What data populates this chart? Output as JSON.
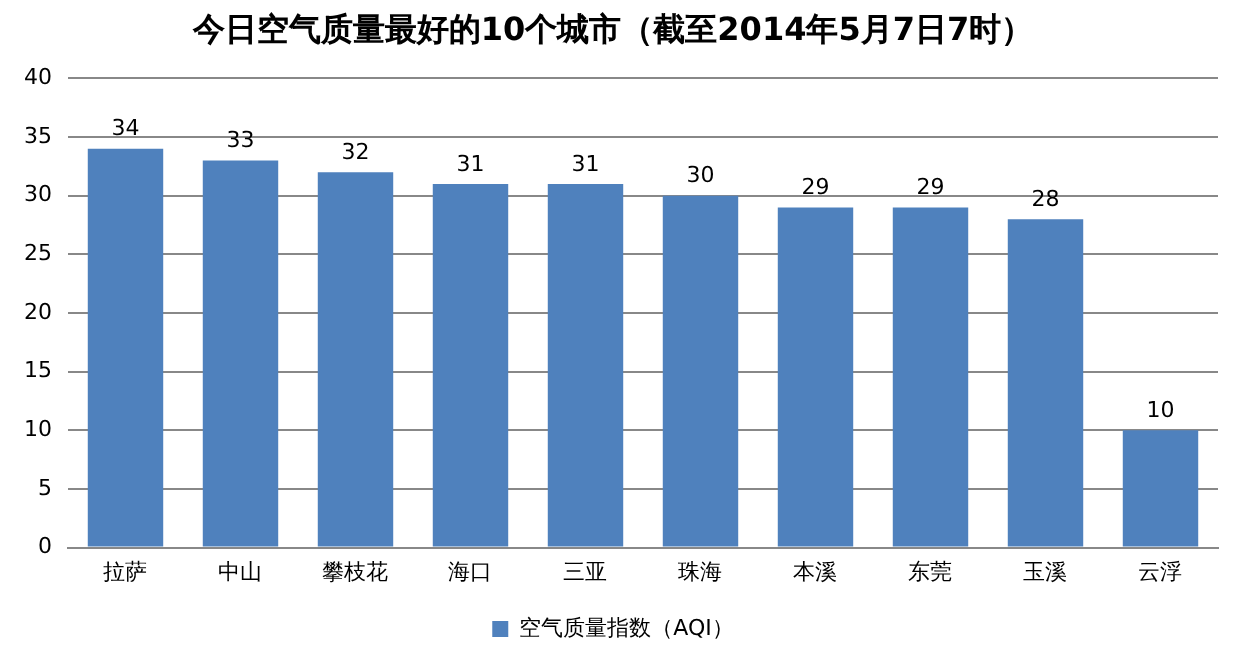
{
  "chart_data": {
    "type": "bar",
    "title": "今日空气质量最好的10个城市（截至2014年5月7日7时）",
    "categories": [
      "拉萨",
      "中山",
      "攀枝花",
      "海口",
      "三亚",
      "珠海",
      "本溪",
      "东莞",
      "玉溪",
      "云浮"
    ],
    "series": [
      {
        "name": "空气质量指数（AQI）",
        "color": "#4f81bd",
        "values": [
          34,
          33,
          32,
          31,
          31,
          30,
          29,
          29,
          28,
          10
        ]
      }
    ],
    "ylim": [
      0,
      40
    ],
    "yticks": [
      0,
      5,
      10,
      15,
      20,
      25,
      30,
      35,
      40
    ],
    "grid": "y",
    "legend": "bottom",
    "data_labels": true
  }
}
